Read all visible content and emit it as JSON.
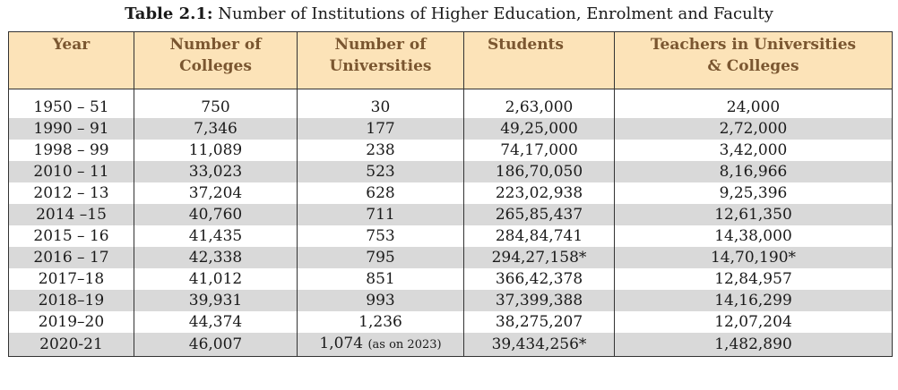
{
  "caption": {
    "number": "Table 2.1:",
    "text": "Number of Institutions of Higher Education, Enrolment and Faculty"
  },
  "headers": [
    {
      "line1": "Year",
      "line2": ""
    },
    {
      "line1": "Number of",
      "line2": "Colleges"
    },
    {
      "line1": "Number of",
      "line2": "Universities"
    },
    {
      "line1": "Students",
      "line2": ""
    },
    {
      "line1": "Teachers in Universities",
      "line2": "& Colleges"
    }
  ],
  "rows": [
    {
      "year": "1950 – 51",
      "colleges": "750",
      "universities": "30",
      "universities_note": "",
      "students": "2,63,000",
      "teachers": "24,000"
    },
    {
      "year": "1990 – 91",
      "colleges": "7,346",
      "universities": "177",
      "universities_note": "",
      "students": "49,25,000",
      "teachers": "2,72,000"
    },
    {
      "year": "1998 – 99",
      "colleges": "11,089",
      "universities": "238",
      "universities_note": "",
      "students": "74,17,000",
      "teachers": "3,42,000"
    },
    {
      "year": "2010 – 11",
      "colleges": "33,023",
      "universities": "523",
      "universities_note": "",
      "students": "186,70,050",
      "teachers": "8,16,966"
    },
    {
      "year": "2012 – 13",
      "colleges": "37,204",
      "universities": "628",
      "universities_note": "",
      "students": "223,02,938",
      "teachers": "9,25,396"
    },
    {
      "year": "2014 –15",
      "colleges": "40,760",
      "universities": "711",
      "universities_note": "",
      "students": "265,85,437",
      "teachers": "12,61,350"
    },
    {
      "year": "2015 – 16",
      "colleges": "41,435",
      "universities": "753",
      "universities_note": "",
      "students": "284,84,741",
      "teachers": "14,38,000"
    },
    {
      "year": "2016 – 17",
      "colleges": "42,338",
      "universities": "795",
      "universities_note": "",
      "students": "294,27,158*",
      "teachers": "14,70,190*"
    },
    {
      "year": "2017–18",
      "colleges": "41,012",
      "universities": "851",
      "universities_note": "",
      "students": "366,42,378",
      "teachers": "12,84,957"
    },
    {
      "year": "2018–19",
      "colleges": "39,931",
      "universities": "993",
      "universities_note": "",
      "students": "37,399,388",
      "teachers": "14,16,299"
    },
    {
      "year": "2019–20",
      "colleges": "44,374",
      "universities": "1,236",
      "universities_note": "",
      "students": "38,275,207",
      "teachers": "12,07,204"
    },
    {
      "year": "2020-21",
      "colleges": "46,007",
      "universities": "1,074",
      "universities_note": "(as on 2023)",
      "students": "39,434,256*",
      "teachers": "1,482,890"
    }
  ]
}
